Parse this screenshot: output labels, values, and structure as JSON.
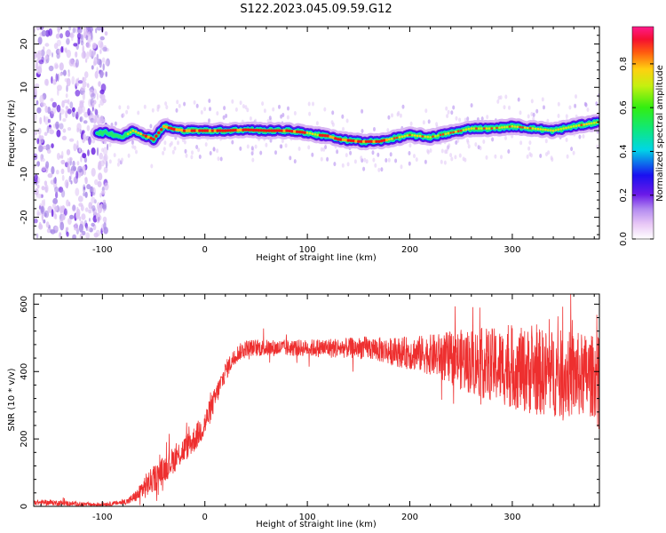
{
  "title": "S122.2023.045.09.59.G12",
  "colors": {
    "snr_line": "#ee2f2f",
    "axis": "#000000"
  },
  "chart_data": [
    {
      "type": "heatmap",
      "xlabel": "Height of straight line (km)",
      "ylabel": "Frequency (Hz)",
      "xlim": [
        -167,
        385
      ],
      "ylim": [
        -25,
        24
      ],
      "xticks": [
        -100,
        0,
        100,
        200,
        300
      ],
      "yticks": [
        -20,
        -10,
        0,
        10,
        20
      ],
      "xtick_labels": [
        "-100",
        "0",
        "100",
        "200",
        "300"
      ],
      "ytick_labels": [
        "-20",
        "-10",
        "0",
        "10",
        "20"
      ],
      "colorbar": {
        "label": "Normalized spectral amplitude",
        "range": [
          0,
          0.97
        ],
        "ticks": [
          0.0,
          0.2,
          0.4,
          0.6,
          0.8
        ],
        "tick_labels": [
          "0.0",
          "0.2",
          "0.4",
          "0.6",
          "0.8"
        ]
      },
      "noise_region_end_km": -105,
      "ridge": {
        "heights": [
          -107,
          -95,
          -80,
          -70,
          -60,
          -50,
          -40,
          -30,
          -20,
          0,
          20,
          40,
          60,
          80,
          100,
          110,
          120,
          130,
          150,
          170,
          180,
          200,
          220,
          240,
          260,
          280,
          300,
          320,
          340,
          360,
          385
        ],
        "freqs": [
          -0.5,
          -0.5,
          -1.5,
          0.0,
          -1.0,
          -2.0,
          1.0,
          0.3,
          0.0,
          0.0,
          0.0,
          0.2,
          0.0,
          0.0,
          -0.5,
          -1.0,
          -1.2,
          -2.0,
          -2.5,
          -2.5,
          -2.0,
          -1.0,
          -1.5,
          -0.5,
          0.5,
          0.5,
          1.0,
          0.5,
          0.0,
          1.0,
          2.0
        ]
      }
    },
    {
      "type": "line",
      "xlabel": "Height of straight line (km)",
      "ylabel": "SNR (10 * v/v)",
      "xlim": [
        -167,
        385
      ],
      "ylim": [
        0,
        630
      ],
      "xticks": [
        -100,
        0,
        100,
        200,
        300
      ],
      "yticks": [
        0,
        200,
        400,
        600
      ],
      "xtick_labels": [
        "-100",
        "0",
        "100",
        "200",
        "300"
      ],
      "ytick_labels": [
        "0",
        "200",
        "400",
        "600"
      ],
      "envelope": {
        "x": [
          -167,
          -140,
          -110,
          -90,
          -75,
          -65,
          -60,
          -50,
          -40,
          -30,
          -20,
          -10,
          0,
          10,
          20,
          30,
          40,
          60,
          80,
          100,
          120,
          140,
          160,
          180,
          200,
          220,
          240,
          260,
          280,
          300,
          320,
          340,
          360,
          385
        ],
        "mean": [
          12,
          10,
          5,
          8,
          15,
          35,
          55,
          80,
          110,
          140,
          170,
          200,
          245,
          320,
          400,
          450,
          470,
          470,
          470,
          470,
          470,
          470,
          470,
          460,
          455,
          450,
          440,
          430,
          420,
          410,
          400,
          395,
          390,
          385
        ],
        "spread": [
          8,
          8,
          6,
          6,
          10,
          20,
          35,
          40,
          40,
          40,
          40,
          40,
          40,
          35,
          30,
          25,
          25,
          25,
          25,
          25,
          30,
          30,
          35,
          40,
          50,
          60,
          80,
          100,
          110,
          120,
          130,
          130,
          130,
          120
        ]
      }
    }
  ]
}
